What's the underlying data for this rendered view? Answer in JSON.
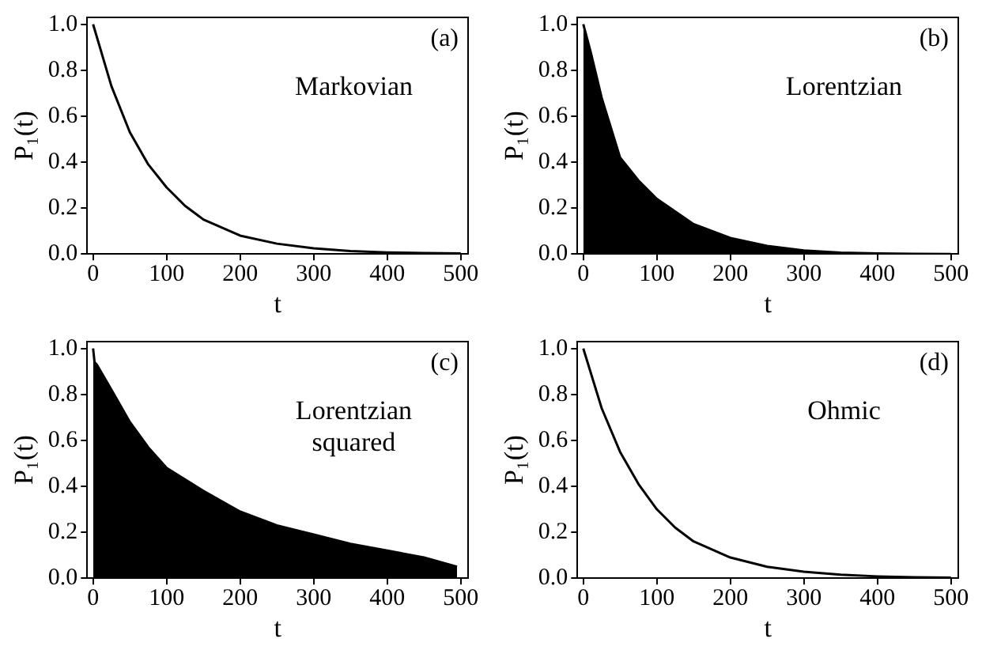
{
  "chart_data": [
    {
      "type": "line",
      "xlabel": "t",
      "ylabel": "P₁(t)",
      "annotations": [
        "(a)",
        "Markovian"
      ],
      "xlim": [
        -8,
        510
      ],
      "ylim": [
        0,
        1.03
      ],
      "xticks": [
        0,
        100,
        200,
        300,
        400,
        500
      ],
      "yticks": [
        {
          "value": 0,
          "label": "0.0"
        },
        {
          "value": 0.2,
          "label": "0.2"
        },
        {
          "value": 0.4,
          "label": "0.4"
        },
        {
          "value": 0.6,
          "label": "0.6"
        },
        {
          "value": 0.8,
          "label": "0.8"
        },
        {
          "value": 1,
          "label": "1.0"
        }
      ],
      "grid": false,
      "legend": false,
      "series": [
        {
          "color": "#000000",
          "x": [
            0,
            25,
            50,
            75,
            100,
            125,
            150,
            200,
            250,
            300,
            350,
            400,
            450,
            500
          ],
          "values": [
            1.0,
            0.73,
            0.53,
            0.39,
            0.29,
            0.21,
            0.15,
            0.08,
            0.045,
            0.025,
            0.013,
            0.007,
            0.004,
            0.002
          ]
        }
      ]
    },
    {
      "type": "area",
      "xlabel": "t",
      "ylabel": "P₁(t)",
      "annotations": [
        "(b)",
        "Lorentzian"
      ],
      "xlim": [
        -8,
        510
      ],
      "ylim": [
        0,
        1.03
      ],
      "xticks": [
        0,
        100,
        200,
        300,
        400,
        500
      ],
      "yticks": [
        {
          "value": 0,
          "label": "0.0"
        },
        {
          "value": 0.2,
          "label": "0.2"
        },
        {
          "value": 0.4,
          "label": "0.4"
        },
        {
          "value": 0.6,
          "label": "0.6"
        },
        {
          "value": 0.8,
          "label": "0.8"
        },
        {
          "value": 1,
          "label": "1.0"
        }
      ],
      "grid": false,
      "legend": false,
      "series": [
        {
          "color": "#000000",
          "x": [
            0,
            10,
            25,
            50,
            75,
            100,
            150,
            200,
            250,
            300,
            350,
            400,
            450,
            500
          ],
          "values": [
            1.0,
            0.88,
            0.68,
            0.42,
            0.32,
            0.24,
            0.13,
            0.07,
            0.035,
            0.015,
            0.006,
            0.002,
            0.001,
            0
          ]
        }
      ]
    },
    {
      "type": "area",
      "xlabel": "t",
      "ylabel": "P₁(t)",
      "annotations": [
        "(c)",
        "Lorentzian\nsquared"
      ],
      "xlim": [
        -8,
        510
      ],
      "ylim": [
        0,
        1.03
      ],
      "xticks": [
        0,
        100,
        200,
        300,
        400,
        500
      ],
      "yticks": [
        {
          "value": 0,
          "label": "0.0"
        },
        {
          "value": 0.2,
          "label": "0.2"
        },
        {
          "value": 0.4,
          "label": "0.4"
        },
        {
          "value": 0.6,
          "label": "0.6"
        },
        {
          "value": 0.8,
          "label": "0.8"
        },
        {
          "value": 1,
          "label": "1.0"
        }
      ],
      "grid": false,
      "legend": false,
      "series": [
        {
          "color": "#000000",
          "x": [
            0,
            2,
            5,
            25,
            50,
            75,
            100,
            150,
            200,
            250,
            300,
            350,
            400,
            450,
            495
          ],
          "values": [
            1.0,
            0.94,
            0.93,
            0.82,
            0.68,
            0.57,
            0.48,
            0.38,
            0.29,
            0.23,
            0.19,
            0.15,
            0.12,
            0.09,
            0.05
          ]
        }
      ]
    },
    {
      "type": "line",
      "xlabel": "t",
      "ylabel": "P₁(t)",
      "annotations": [
        "(d)",
        "Ohmic"
      ],
      "xlim": [
        -8,
        510
      ],
      "ylim": [
        0,
        1.03
      ],
      "xticks": [
        0,
        100,
        200,
        300,
        400,
        500
      ],
      "yticks": [
        {
          "value": 0,
          "label": "0.0"
        },
        {
          "value": 0.2,
          "label": "0.2"
        },
        {
          "value": 0.4,
          "label": "0.4"
        },
        {
          "value": 0.6,
          "label": "0.6"
        },
        {
          "value": 0.8,
          "label": "0.8"
        },
        {
          "value": 1,
          "label": "1.0"
        }
      ],
      "grid": false,
      "legend": false,
      "series": [
        {
          "color": "#000000",
          "x": [
            0,
            25,
            50,
            75,
            100,
            125,
            150,
            200,
            250,
            300,
            350,
            400,
            450,
            500
          ],
          "values": [
            1.0,
            0.74,
            0.55,
            0.41,
            0.3,
            0.22,
            0.16,
            0.09,
            0.05,
            0.028,
            0.015,
            0.008,
            0.004,
            0.002
          ]
        }
      ]
    }
  ]
}
